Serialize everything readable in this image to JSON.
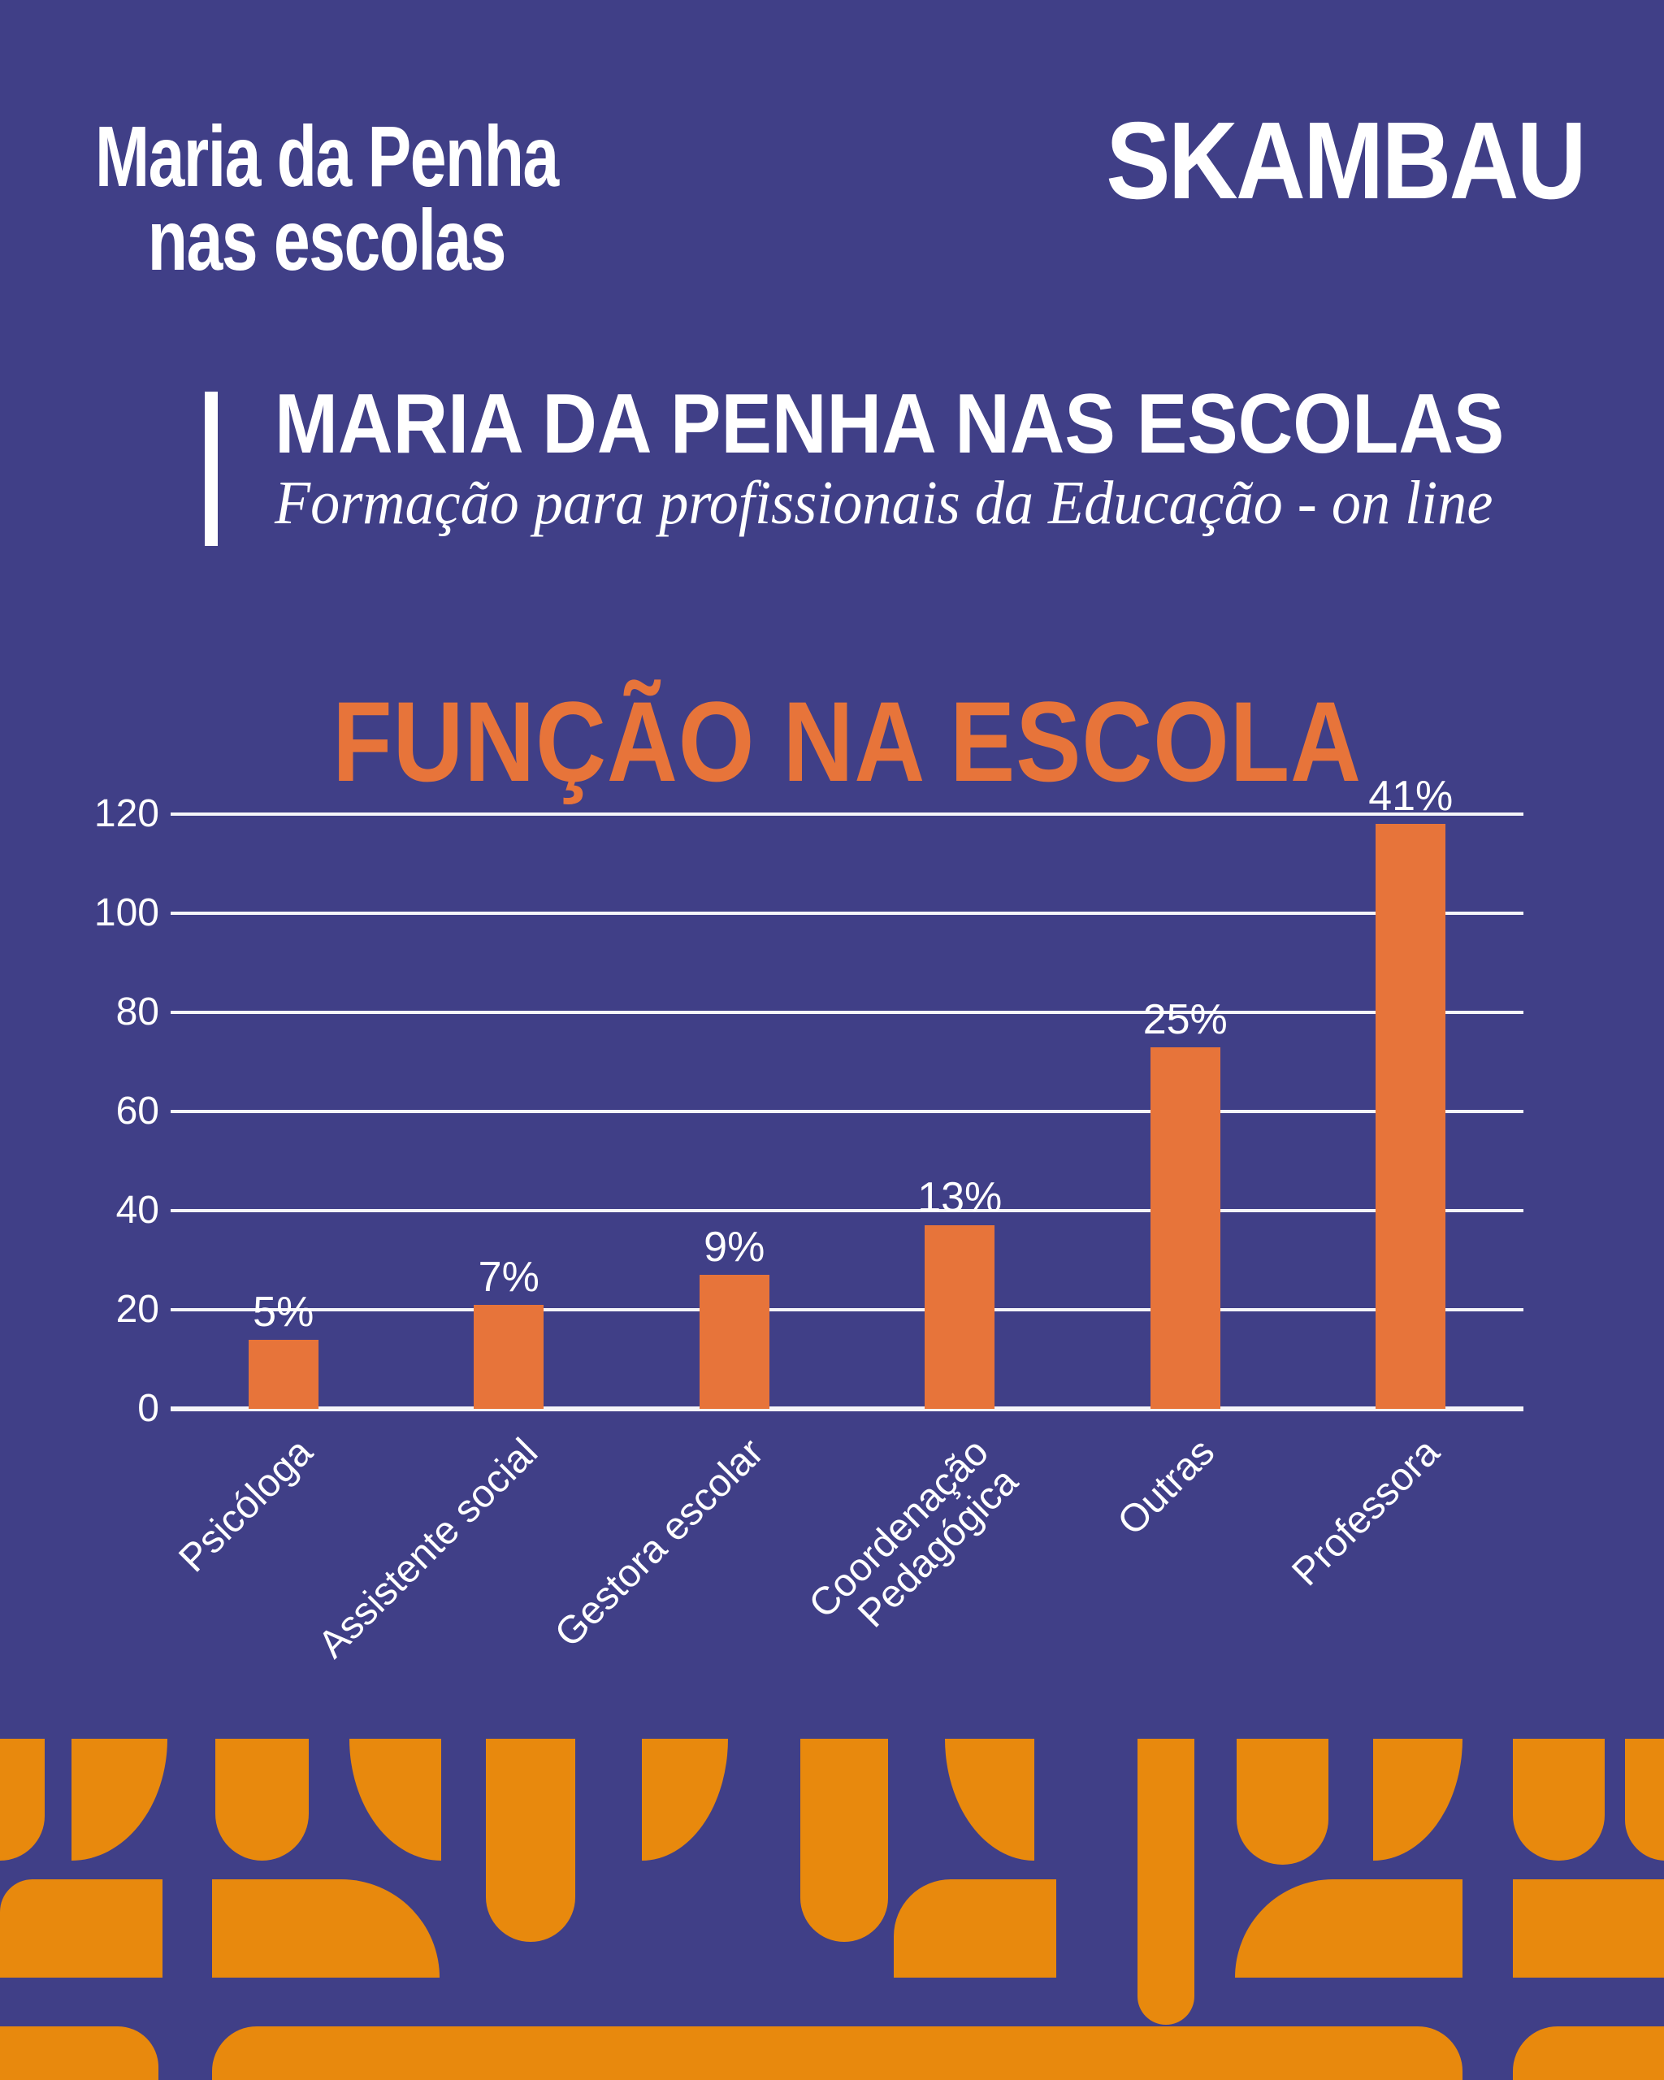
{
  "header": {
    "logo": {
      "line1": "Maria da Penha",
      "line2": "nas escolas"
    },
    "brand": "SKAMBAU"
  },
  "title_block": {
    "title": "MARIA DA PENHA NAS ESCOLAS",
    "subtitle": "Formação para profissionais da Educação - on line"
  },
  "chart_data": {
    "type": "bar",
    "title": "FUNÇÃO NA ESCOLA",
    "categories": [
      "Psicóloga",
      "Assistente social",
      "Gestora escolar",
      "Coordenação\nPedagógica",
      "Outras",
      "Professora"
    ],
    "values": [
      14,
      21,
      27,
      37,
      73,
      118
    ],
    "bar_labels": [
      "5%",
      "7%",
      "9%",
      "13%",
      "25%",
      "41%"
    ],
    "y_ticks": [
      0,
      20,
      40,
      60,
      80,
      100,
      120
    ],
    "ylim": [
      0,
      120
    ],
    "xlabel": "",
    "ylabel": "",
    "grid": true,
    "legend": "none",
    "bar_color": "#E7743A",
    "label_color": "#FFFFFF",
    "gridline_color": "#FFFFFF"
  },
  "colors": {
    "background_purple": "#403F87",
    "bar_and_title_orange": "#E7743A",
    "pattern_orange": "#E8890D",
    "text_white": "#FFFFFF"
  }
}
